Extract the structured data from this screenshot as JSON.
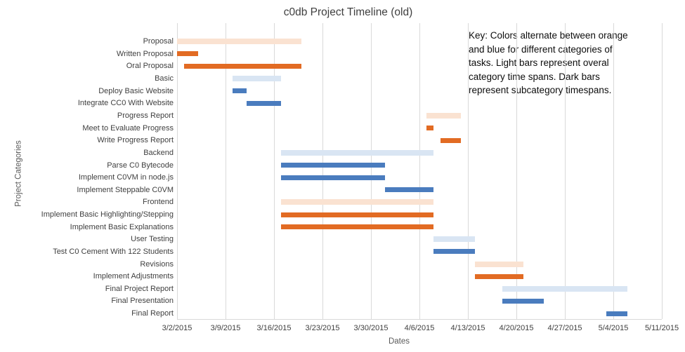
{
  "chart_data": {
    "type": "bar",
    "subtype": "gantt",
    "title": "c0db Project Timeline (old)",
    "xlabel": "Dates",
    "ylabel": "Project Categories",
    "grid": true,
    "legend_position": "none",
    "x_ticks": [
      "3/2/2015",
      "3/9/2015",
      "3/16/2015",
      "3/23/2015",
      "3/30/2015",
      "4/6/2015",
      "4/13/2015",
      "4/20/2015",
      "4/27/2015",
      "5/4/2015",
      "5/11/2015"
    ],
    "x_range": [
      "3/2/2015",
      "5/11/2015"
    ],
    "colors": {
      "light_orange": "#FAE2D1",
      "dark_orange": "#E26B23",
      "light_blue": "#D9E5F3",
      "dark_blue": "#4A7CBE",
      "gridline": "#D9D9D9",
      "text": "#404040"
    },
    "annotation_lines": [
      "Key: Colors alternate between orange",
      "and blue for different categories of",
      "tasks. Light bars represent overal",
      "category time spans. Dark bars",
      "represent subcategory timespans."
    ],
    "tasks": [
      {
        "label": "Proposal",
        "start": "3/2/2015",
        "end": "3/20/2015",
        "color": "light_orange",
        "kind": "category"
      },
      {
        "label": "Written Proposal",
        "start": "3/2/2015",
        "end": "3/5/2015",
        "color": "dark_orange",
        "kind": "subcategory"
      },
      {
        "label": "Oral Proposal",
        "start": "3/3/2015",
        "end": "3/20/2015",
        "color": "dark_orange",
        "kind": "subcategory"
      },
      {
        "label": "Basic",
        "start": "3/10/2015",
        "end": "3/17/2015",
        "color": "light_blue",
        "kind": "category"
      },
      {
        "label": "Deploy Basic Website",
        "start": "3/10/2015",
        "end": "3/12/2015",
        "color": "dark_blue",
        "kind": "subcategory"
      },
      {
        "label": "Integrate CC0 With Website",
        "start": "3/12/2015",
        "end": "3/17/2015",
        "color": "dark_blue",
        "kind": "subcategory"
      },
      {
        "label": "Progress Report",
        "start": "4/7/2015",
        "end": "4/12/2015",
        "color": "light_orange",
        "kind": "category"
      },
      {
        "label": "Meet to Evaluate Progress",
        "start": "4/7/2015",
        "end": "4/8/2015",
        "color": "dark_orange",
        "kind": "subcategory"
      },
      {
        "label": "Write Progress Report",
        "start": "4/9/2015",
        "end": "4/12/2015",
        "color": "dark_orange",
        "kind": "subcategory"
      },
      {
        "label": "Backend",
        "start": "3/17/2015",
        "end": "4/8/2015",
        "color": "light_blue",
        "kind": "category"
      },
      {
        "label": "Parse C0 Bytecode",
        "start": "3/17/2015",
        "end": "4/1/2015",
        "color": "dark_blue",
        "kind": "subcategory"
      },
      {
        "label": "Implement C0VM in node.js",
        "start": "3/17/2015",
        "end": "4/1/2015",
        "color": "dark_blue",
        "kind": "subcategory"
      },
      {
        "label": "Implement Steppable C0VM",
        "start": "4/1/2015",
        "end": "4/8/2015",
        "color": "dark_blue",
        "kind": "subcategory"
      },
      {
        "label": "Frontend",
        "start": "3/17/2015",
        "end": "4/8/2015",
        "color": "light_orange",
        "kind": "category"
      },
      {
        "label": "Implement Basic Highlighting/Stepping",
        "start": "3/17/2015",
        "end": "4/8/2015",
        "color": "dark_orange",
        "kind": "subcategory"
      },
      {
        "label": "Implement Basic Explanations",
        "start": "3/17/2015",
        "end": "4/8/2015",
        "color": "dark_orange",
        "kind": "subcategory"
      },
      {
        "label": "User Testing",
        "start": "4/8/2015",
        "end": "4/14/2015",
        "color": "light_blue",
        "kind": "category"
      },
      {
        "label": "Test C0 Cement With 122 Students",
        "start": "4/8/2015",
        "end": "4/14/2015",
        "color": "dark_blue",
        "kind": "subcategory"
      },
      {
        "label": "Revisions",
        "start": "4/14/2015",
        "end": "4/21/2015",
        "color": "light_orange",
        "kind": "category"
      },
      {
        "label": "Implement Adjustments",
        "start": "4/14/2015",
        "end": "4/21/2015",
        "color": "dark_orange",
        "kind": "subcategory"
      },
      {
        "label": "Final Project Report",
        "start": "4/18/2015",
        "end": "5/6/2015",
        "color": "light_blue",
        "kind": "category"
      },
      {
        "label": "Final Presentation",
        "start": "4/18/2015",
        "end": "4/24/2015",
        "color": "dark_blue",
        "kind": "subcategory"
      },
      {
        "label": "Final Report",
        "start": "5/3/2015",
        "end": "5/6/2015",
        "color": "dark_blue",
        "kind": "subcategory"
      }
    ]
  }
}
